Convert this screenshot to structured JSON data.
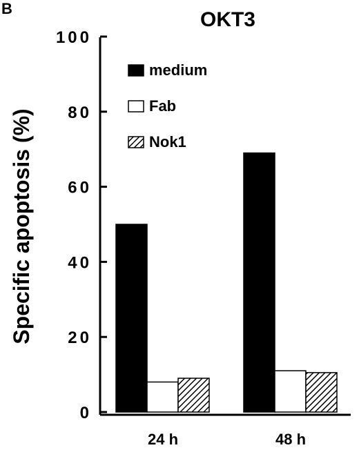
{
  "panel_label": "B",
  "chart_data": {
    "type": "bar",
    "title": "OKT3",
    "xlabel": "",
    "ylabel": "Specific apoptosis (%)",
    "ylim": [
      0,
      100
    ],
    "yticks": [
      "0",
      "20",
      "40",
      "60",
      "80",
      "100"
    ],
    "categories": [
      "24  h",
      "48  h"
    ],
    "series": [
      {
        "name": "medium",
        "values": [
          50,
          69
        ],
        "fill": "#000000"
      },
      {
        "name": "Fab",
        "values": [
          8,
          11
        ],
        "fill": "#ffffff"
      },
      {
        "name": "Nok1",
        "values": [
          9,
          10.5
        ],
        "fill": "hatch"
      }
    ],
    "legend_position": "top-left (inside plot)",
    "grid": false
  }
}
